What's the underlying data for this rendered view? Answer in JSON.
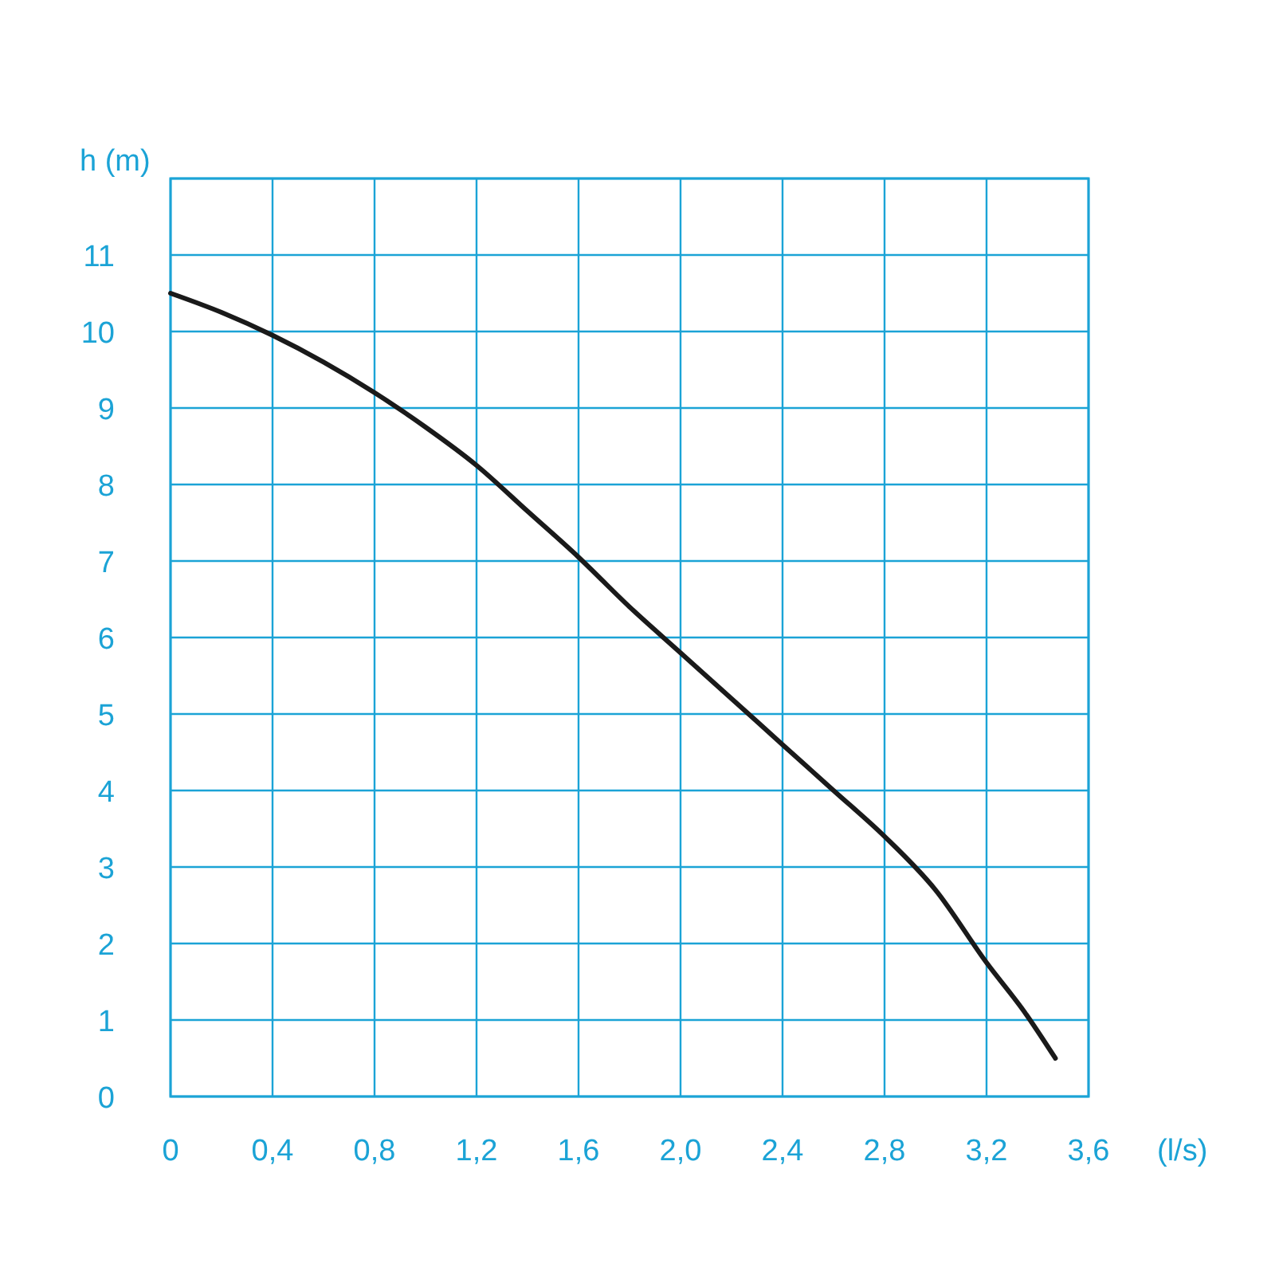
{
  "chart_data": {
    "type": "line",
    "xlabel": "(l/s)",
    "ylabel": "h (m)",
    "x": [
      0,
      0.2,
      0.4,
      0.6,
      0.8,
      1.0,
      1.2,
      1.4,
      1.6,
      1.8,
      2.0,
      2.2,
      2.4,
      2.6,
      2.8,
      3.0,
      3.2,
      3.35,
      3.47
    ],
    "series": [
      {
        "color": "#1a1a1a",
        "values": [
          10.5,
          10.25,
          9.95,
          9.6,
          9.2,
          8.75,
          8.25,
          7.65,
          7.05,
          6.4,
          5.8,
          5.2,
          4.6,
          4.0,
          3.4,
          2.7,
          1.75,
          1.1,
          0.5
        ]
      }
    ],
    "xlim": [
      0,
      3.6
    ],
    "ylim": [
      0,
      12
    ],
    "xticks": [
      {
        "value": 0,
        "label": "0"
      },
      {
        "value": 0.4,
        "label": "0,4"
      },
      {
        "value": 0.8,
        "label": "0,8"
      },
      {
        "value": 1.2,
        "label": "1,2"
      },
      {
        "value": 1.6,
        "label": "1,6"
      },
      {
        "value": 2.0,
        "label": "2,0"
      },
      {
        "value": 2.4,
        "label": "2,4"
      },
      {
        "value": 2.8,
        "label": "2,8"
      },
      {
        "value": 3.2,
        "label": "3,2"
      },
      {
        "value": 3.6,
        "label": "3,6"
      }
    ],
    "yticks": [
      0,
      1,
      2,
      3,
      4,
      5,
      6,
      7,
      8,
      9,
      10,
      11,
      {
        "value": 12,
        "label": null
      }
    ],
    "grid": true,
    "marker": "none",
    "line_style": "solid"
  }
}
